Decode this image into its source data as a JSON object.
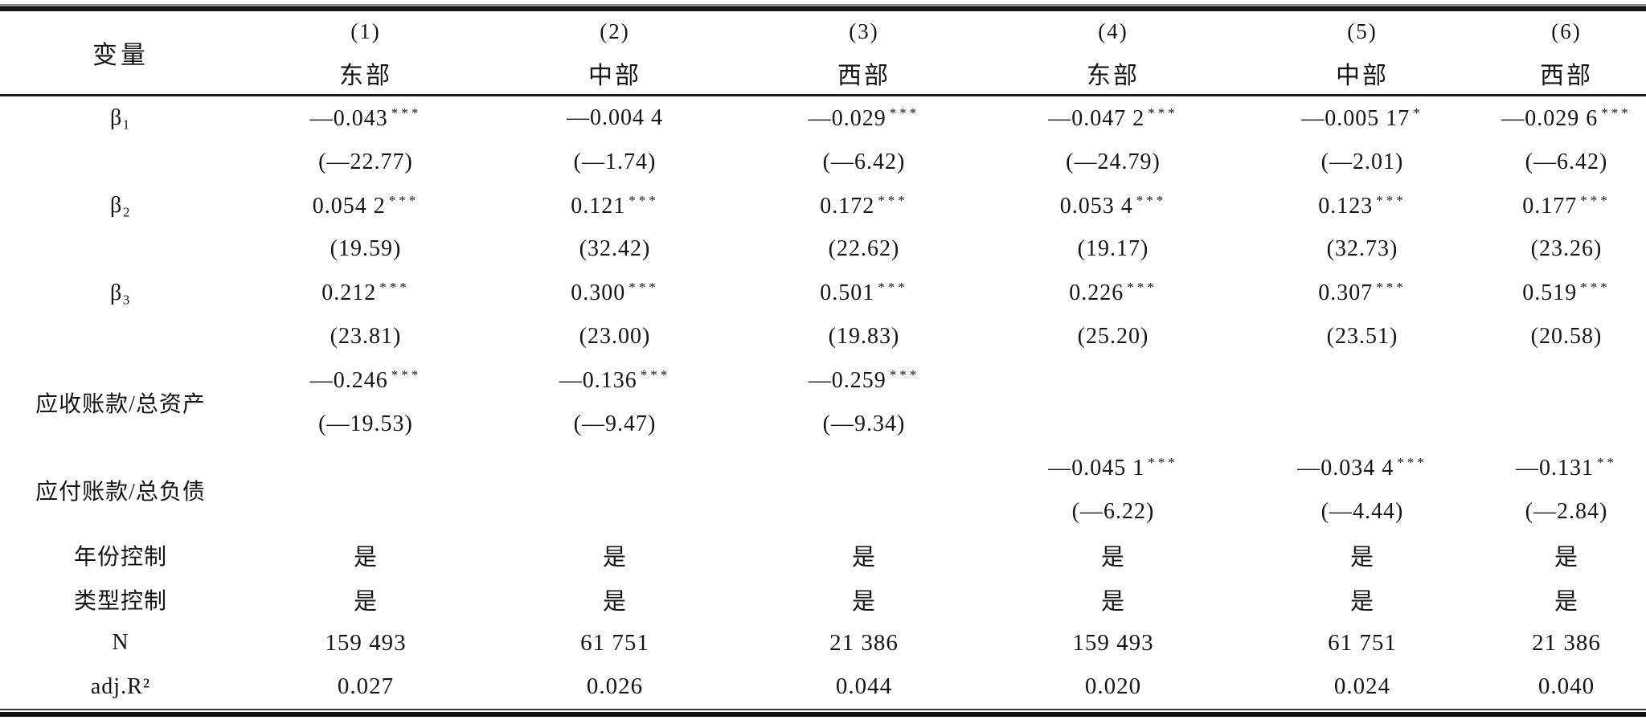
{
  "header": {
    "variable": "变量",
    "columns": [
      {
        "num": "(1)",
        "region": "东部"
      },
      {
        "num": "(2)",
        "region": "中部"
      },
      {
        "num": "(3)",
        "region": "西部"
      },
      {
        "num": "(4)",
        "region": "东部"
      },
      {
        "num": "(5)",
        "region": "中部"
      },
      {
        "num": "(6)",
        "region": "西部"
      }
    ]
  },
  "body": {
    "coef_rows": [
      {
        "label": "β₁",
        "label_span": 1,
        "estimates": [
          {
            "v": "—0.043",
            "s": "***"
          },
          {
            "v": "—0.004 4",
            "s": ""
          },
          {
            "v": "—0.029",
            "s": "***"
          },
          {
            "v": "—0.047 2",
            "s": "***"
          },
          {
            "v": "—0.005 17",
            "s": "*"
          },
          {
            "v": "—0.029 6",
            "s": "***"
          }
        ],
        "tstats": [
          "(—22.77)",
          "(—1.74)",
          "(—6.42)",
          "(—24.79)",
          "(—2.01)",
          "(—6.42)"
        ]
      },
      {
        "label": "β₂",
        "label_span": 1,
        "estimates": [
          {
            "v": "0.054 2",
            "s": "***"
          },
          {
            "v": "0.121",
            "s": "***"
          },
          {
            "v": "0.172",
            "s": "***"
          },
          {
            "v": "0.053 4",
            "s": "***"
          },
          {
            "v": "0.123",
            "s": "***"
          },
          {
            "v": "0.177",
            "s": "***"
          }
        ],
        "tstats": [
          "(19.59)",
          "(32.42)",
          "(22.62)",
          "(19.17)",
          "(32.73)",
          "(23.26)"
        ]
      },
      {
        "label": "β₃",
        "label_span": 1,
        "estimates": [
          {
            "v": "0.212",
            "s": "***"
          },
          {
            "v": "0.300",
            "s": "***"
          },
          {
            "v": "0.501",
            "s": "***"
          },
          {
            "v": "0.226",
            "s": "***"
          },
          {
            "v": "0.307",
            "s": "***"
          },
          {
            "v": "0.519",
            "s": "***"
          }
        ],
        "tstats": [
          "(23.81)",
          "(23.00)",
          "(19.83)",
          "(25.20)",
          "(23.51)",
          "(20.58)"
        ]
      },
      {
        "label": "应收账款/总资产",
        "label_span": 2,
        "estimates": [
          {
            "v": "—0.246",
            "s": "***"
          },
          {
            "v": "—0.136",
            "s": "***"
          },
          {
            "v": "—0.259",
            "s": "***"
          },
          {
            "v": "",
            "s": ""
          },
          {
            "v": "",
            "s": ""
          },
          {
            "v": "",
            "s": ""
          }
        ],
        "tstats": [
          "(—19.53)",
          "(—9.47)",
          "(—9.34)",
          "",
          "",
          ""
        ]
      },
      {
        "label": "应付账款/总负债",
        "label_span": 2,
        "estimates": [
          {
            "v": "",
            "s": ""
          },
          {
            "v": "",
            "s": ""
          },
          {
            "v": "",
            "s": ""
          },
          {
            "v": "—0.045 1",
            "s": "***"
          },
          {
            "v": "—0.034 4",
            "s": "***"
          },
          {
            "v": "—0.131",
            "s": "**"
          }
        ],
        "tstats": [
          "",
          "",
          "",
          "(—6.22)",
          "(—4.44)",
          "(—2.84)"
        ]
      }
    ],
    "simple_rows": [
      {
        "label": "年份控制",
        "values": [
          "是",
          "是",
          "是",
          "是",
          "是",
          "是"
        ]
      },
      {
        "label": "类型控制",
        "values": [
          "是",
          "是",
          "是",
          "是",
          "是",
          "是"
        ]
      },
      {
        "label": "N",
        "values": [
          "159 493",
          "61 751",
          "21 386",
          "159 493",
          "61 751",
          "21 386"
        ]
      },
      {
        "label": "adj.R²",
        "values": [
          "0.027",
          "0.026",
          "0.044",
          "0.020",
          "0.024",
          "0.040"
        ]
      }
    ]
  }
}
